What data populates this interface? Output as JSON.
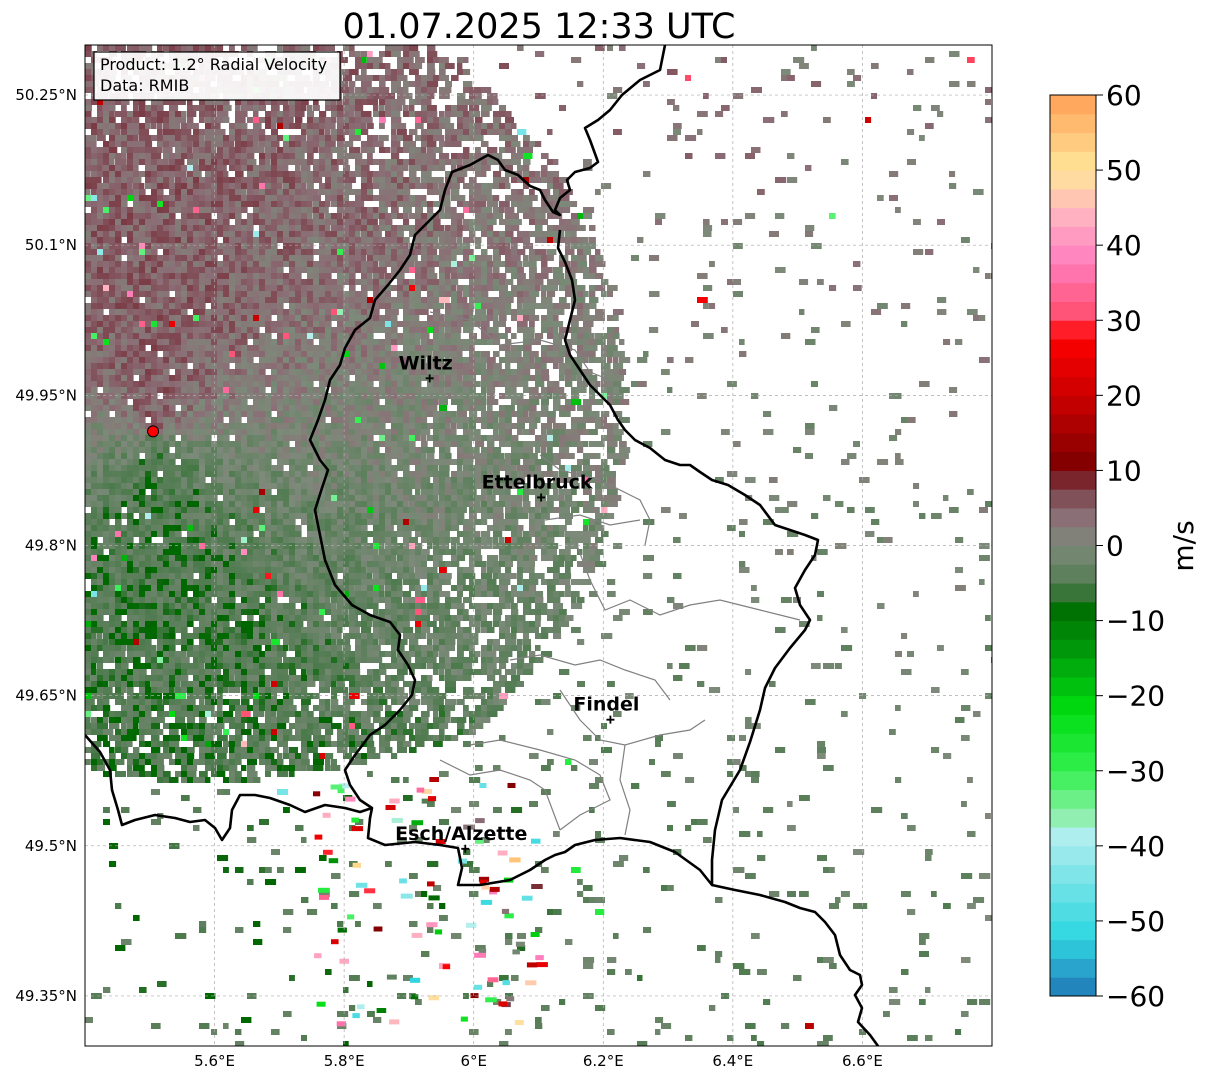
{
  "title": "01.07.2025 12:33 UTC",
  "info_box": {
    "product": "Product: 1.2° Radial Velocity",
    "source": "Data: RMIB"
  },
  "map": {
    "lon_range": [
      5.4,
      6.8
    ],
    "lat_range": [
      49.3,
      50.3
    ],
    "x_ticks": [
      {
        "value": 5.6,
        "label": "5.6°E"
      },
      {
        "value": 5.8,
        "label": "5.8°E"
      },
      {
        "value": 6.0,
        "label": "6°E"
      },
      {
        "value": 6.2,
        "label": "6.2°E"
      },
      {
        "value": 6.4,
        "label": "6.4°E"
      },
      {
        "value": 6.6,
        "label": "6.6°E"
      }
    ],
    "y_ticks": [
      {
        "value": 50.25,
        "label": "50.25°N"
      },
      {
        "value": 50.1,
        "label": "50.1°N"
      },
      {
        "value": 49.95,
        "label": "49.95°N"
      },
      {
        "value": 49.8,
        "label": "49.8°N"
      },
      {
        "value": 49.65,
        "label": "49.65°N"
      },
      {
        "value": 49.5,
        "label": "49.5°N"
      },
      {
        "value": 49.35,
        "label": "49.35°N"
      }
    ],
    "grid": true,
    "radar_site": {
      "lon": 5.505,
      "lat": 49.914,
      "color": "#ff0000"
    },
    "cities": [
      {
        "name": "Wiltz",
        "lon": 5.932,
        "lat": 49.967
      },
      {
        "name": "Ettelbruck",
        "lon": 6.104,
        "lat": 49.848
      },
      {
        "name": "Findel",
        "lon": 6.211,
        "lat": 49.626
      },
      {
        "name": "Esch/Alzette",
        "lon": 5.987,
        "lat": 49.497
      }
    ]
  },
  "colorbar": {
    "label": "m/s",
    "min": -60,
    "max": 60,
    "ticks": [
      {
        "value": 60,
        "label": "60"
      },
      {
        "value": 50,
        "label": "50"
      },
      {
        "value": 40,
        "label": "40"
      },
      {
        "value": 30,
        "label": "30"
      },
      {
        "value": 20,
        "label": "20"
      },
      {
        "value": 10,
        "label": "10"
      },
      {
        "value": 0,
        "label": "0"
      },
      {
        "value": -10,
        "label": "−10"
      },
      {
        "value": -20,
        "label": "−20"
      },
      {
        "value": -30,
        "label": "−30"
      },
      {
        "value": -40,
        "label": "−40"
      },
      {
        "value": -50,
        "label": "−50"
      },
      {
        "value": -60,
        "label": "−60"
      }
    ],
    "stops": [
      {
        "v": -60,
        "color": "#1f77b4"
      },
      {
        "v": -56,
        "color": "#2aa7cf"
      },
      {
        "v": -52,
        "color": "#2fd8e0"
      },
      {
        "v": -45,
        "color": "#73e3e6"
      },
      {
        "v": -38,
        "color": "#b6efef"
      },
      {
        "v": -36,
        "color": "#8cf0a8"
      },
      {
        "v": -30,
        "color": "#33f050"
      },
      {
        "v": -22,
        "color": "#00dd10"
      },
      {
        "v": -14,
        "color": "#009a0a"
      },
      {
        "v": -7,
        "color": "#006400"
      },
      {
        "v": -6,
        "color": "#4c7a4c"
      },
      {
        "v": 0,
        "color": "#7d8a7a"
      },
      {
        "v": 4,
        "color": "#8b6e76"
      },
      {
        "v": 8,
        "color": "#7a3a44"
      },
      {
        "v": 10,
        "color": "#7a0000"
      },
      {
        "v": 20,
        "color": "#cc0000"
      },
      {
        "v": 28,
        "color": "#ff0000"
      },
      {
        "v": 30,
        "color": "#ff4c6a"
      },
      {
        "v": 38,
        "color": "#ff7fbf"
      },
      {
        "v": 44,
        "color": "#ffb3c1"
      },
      {
        "v": 50,
        "color": "#ffe699"
      },
      {
        "v": 60,
        "color": "#ff9f55"
      }
    ]
  }
}
